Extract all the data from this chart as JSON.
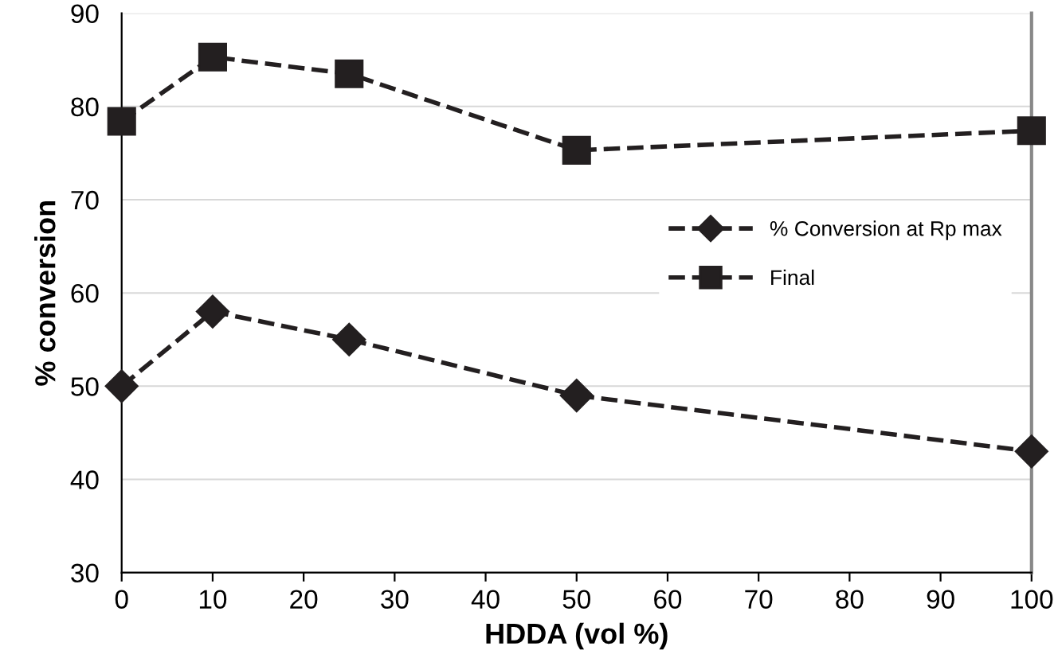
{
  "chart_data": {
    "type": "line",
    "xlabel": "HDDA (vol %)",
    "ylabel": "% conversion",
    "x": [
      0,
      10,
      25,
      50,
      100
    ],
    "series": [
      {
        "name": "% Conversion at Rp max",
        "color": "#231f20",
        "marker": "diamond",
        "values": [
          50,
          58,
          55,
          49,
          43
        ]
      },
      {
        "name": "Final",
        "color": "#231f20",
        "marker": "square",
        "values": [
          78.4,
          85.3,
          83.5,
          75.3,
          77.4
        ]
      }
    ],
    "xlim": [
      0,
      100
    ],
    "xticks": [
      0,
      10,
      20,
      30,
      40,
      50,
      60,
      70,
      80,
      90,
      100
    ],
    "ylim": [
      30,
      90
    ],
    "yticks": [
      30,
      40,
      50,
      60,
      70,
      80,
      90
    ],
    "grid": "y",
    "legend": "right",
    "line_style": "dashed"
  }
}
